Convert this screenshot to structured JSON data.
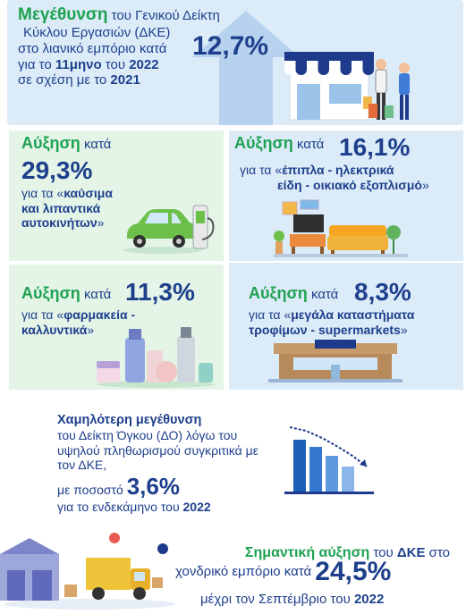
{
  "top": {
    "lead": "Μεγέθυνση",
    "line1_rest": " του Γενικού Δείκτη",
    "line2": "Κύκλου Εργασιών (ΔΚΕ)",
    "line3": "στο λιανικό εμπόριο κατά",
    "line4_pre": "για το ",
    "line4_bold": "11μηνο",
    "line4_mid": " του ",
    "line4_year": "2022",
    "line5_pre": "σε σχέση με το ",
    "line5_year": "2021",
    "value": "12,7%"
  },
  "fuel": {
    "lead": "Αύξηση",
    "mid": " κατά",
    "value": "29,3%",
    "pre": "για τα «",
    "cat1": "καύσιμα",
    "cat2": "και λιπαντικά",
    "cat3": "αυτοκινήτων",
    "post": "»"
  },
  "furniture": {
    "lead": "Αύξηση",
    "mid": " κατά ",
    "value": "16,1%",
    "pre": "για τα «",
    "cat1": "έπιπλα - ηλεκτρικά",
    "cat2": "είδη - οικιακό εξοπλισμό",
    "post": "»"
  },
  "pharmacy": {
    "lead": "Αύξηση",
    "mid": " κατά ",
    "value": "11,3%",
    "pre": "για τα «",
    "cat1": "φαρμακεία -",
    "cat2": "καλλυντικά",
    "post": "»"
  },
  "supermarket": {
    "lead": "Αύξηση",
    "mid": " κατά ",
    "value": "8,3%",
    "pre": "για τα «",
    "cat1": "μεγάλα καταστήματα",
    "cat2": "τροφίμων - supermarkets",
    "post": "»"
  },
  "volume": {
    "lead": "Χαμηλότερη μεγέθυνση",
    "line2": "του Δείκτη Όγκου (ΔΟ) λόγω του",
    "line3": "υψηλού πληθωρισμού συγκριτικά με",
    "line4": "τον ΔΚΕ,",
    "line5": "με ποσοστό ",
    "value": "3,6%",
    "line6_pre": "για το ενδεκάμηνο του ",
    "line6_year": "2022"
  },
  "wholesale": {
    "lead": "Σημαντική αύξηση",
    "line1_mid": " του ",
    "line1_bold": "ΔΚΕ",
    "line1_end": " στο",
    "line2": "χονδρικό εμπόριο κατά ",
    "value": "24,5%",
    "line3_pre": "μέχρι τον Σεπτέμβριο του ",
    "line3_year": "2022"
  },
  "colors": {
    "blue_text": "#1d3f8c",
    "green": "#1ea252",
    "panel_blue": "#dcebf8",
    "panel_green": "#e4f4e7"
  }
}
